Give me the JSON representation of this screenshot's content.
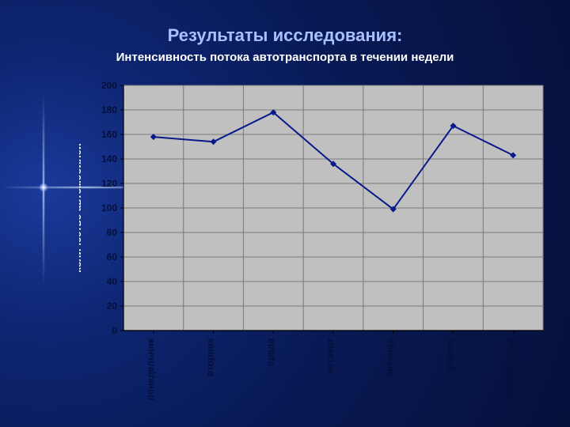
{
  "title": "Результаты исследования:",
  "subtitle": "Интенсивность потока автотранспорта в течении недели",
  "chart": {
    "type": "line",
    "categories": [
      "понедельник",
      "вторник",
      "среда",
      "четверг",
      "пятница",
      "суббота",
      "воскресенье"
    ],
    "values": [
      158,
      154,
      178,
      136,
      99,
      167,
      143
    ],
    "ylabel": "количество автомобилей",
    "ylim": [
      0,
      200
    ],
    "ytick_step": 20,
    "plot_bg": "#c0c0c0",
    "grid_color": "#7a7a7a",
    "line_color": "#0a1a8a",
    "marker_color": "#0a1a8a",
    "axis_color": "#000000",
    "tick_label_color": "#040f3a",
    "axis_label_color": "#ffffff",
    "line_width": 2,
    "marker_size": 4,
    "tick_fontsize": 12,
    "axis_label_fontsize": 13,
    "xlabel_fontsize": 12,
    "title_fontsize": 22,
    "subtitle_fontsize": 15,
    "title_color": "#a8c0ff",
    "subtitle_color": "#ffffff",
    "slide_bg_center": "#1a3a9a",
    "slide_bg_outer": "#050f3a"
  }
}
